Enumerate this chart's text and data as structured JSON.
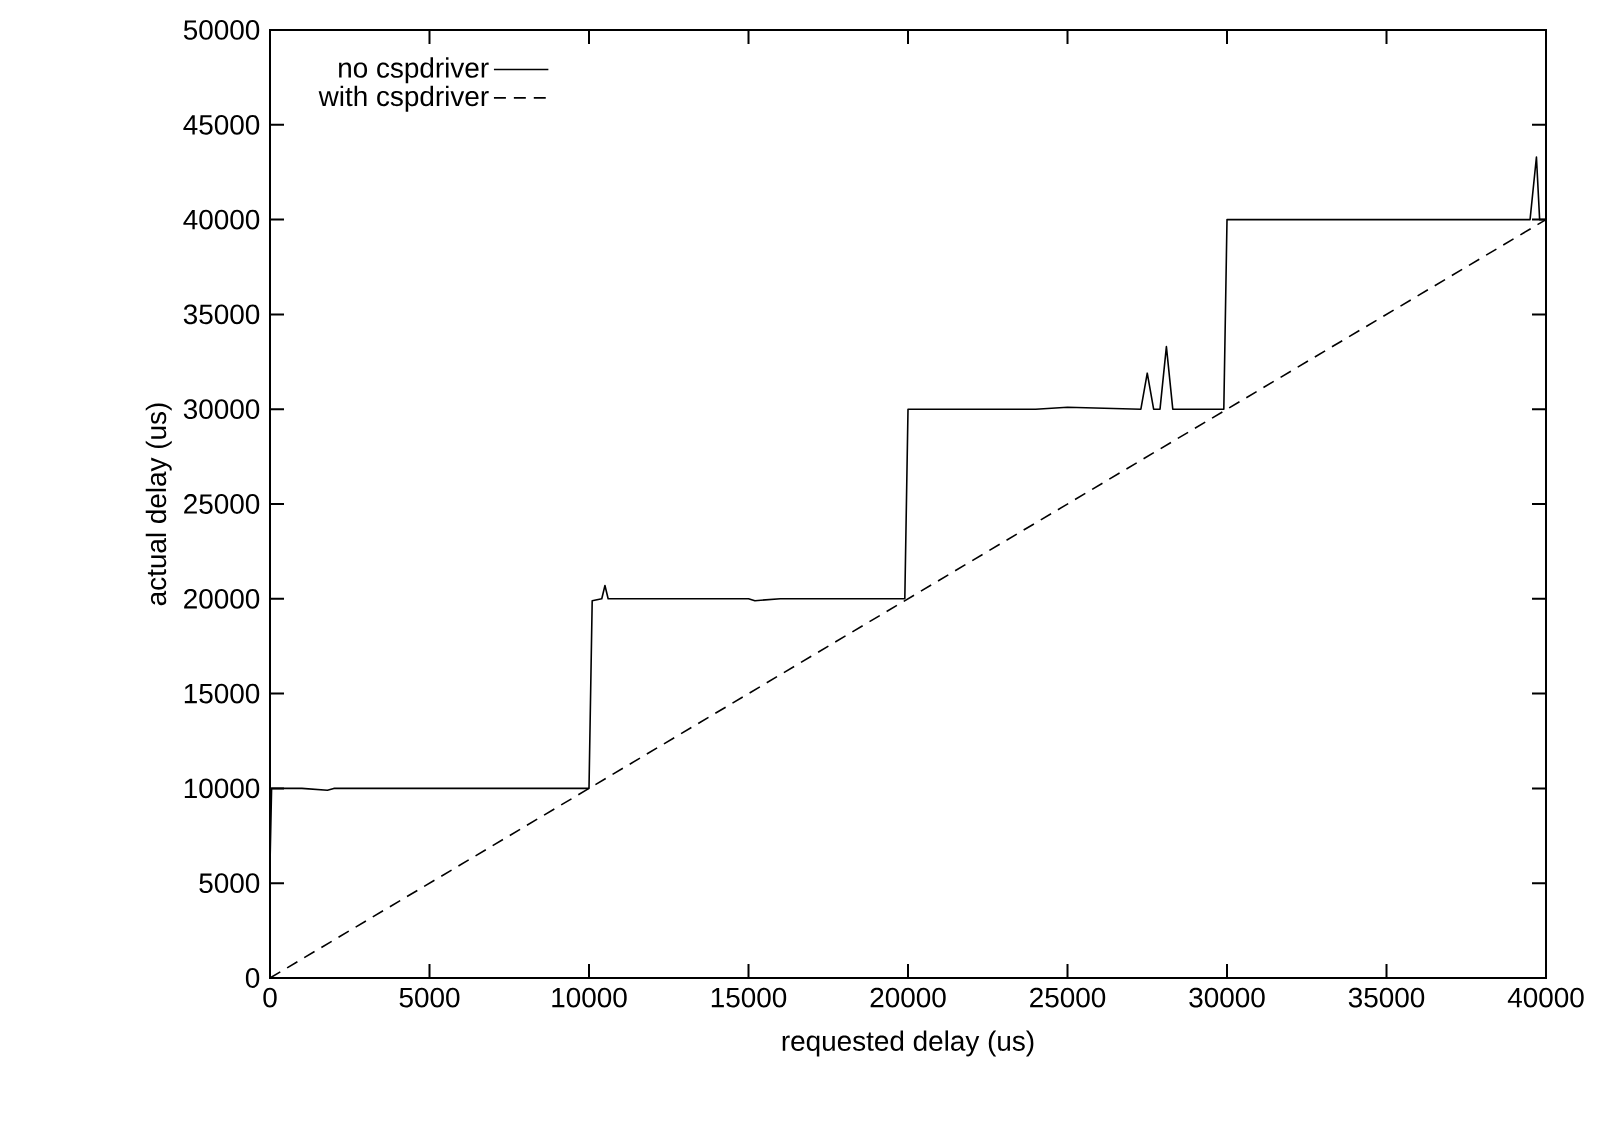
{
  "chart_data": {
    "type": "line",
    "xlabel": "requested delay (us)",
    "ylabel": "actual delay (us)",
    "xlim": [
      0,
      40000
    ],
    "ylim": [
      0,
      50000
    ],
    "xticks": [
      0,
      5000,
      10000,
      15000,
      20000,
      25000,
      30000,
      35000,
      40000
    ],
    "yticks": [
      0,
      5000,
      10000,
      15000,
      20000,
      25000,
      30000,
      35000,
      40000,
      45000,
      50000
    ],
    "grid": false,
    "legend": "top left",
    "marker": "none",
    "series": [
      {
        "name": "no cspdriver",
        "color": "#000000",
        "line_style": "solid",
        "x": [
          0,
          50,
          1000,
          1800,
          2000,
          4000,
          6000,
          8000,
          9000,
          9800,
          10000,
          10100,
          10400,
          10500,
          10600,
          12000,
          15000,
          15200,
          16000,
          18000,
          19900,
          20000,
          22000,
          24000,
          25000,
          27300,
          27500,
          27700,
          27900,
          28100,
          28300,
          29500,
          29900,
          30000,
          32000,
          34000,
          36000,
          38000,
          39500,
          39700,
          39800,
          40000
        ],
        "values": [
          6000,
          10000,
          10000,
          9900,
          10000,
          10000,
          10000,
          10000,
          10000,
          10000,
          10000,
          19900,
          20000,
          20700,
          20000,
          20000,
          20000,
          19900,
          20000,
          20000,
          20000,
          30000,
          30000,
          30000,
          30100,
          30000,
          31900,
          30000,
          30000,
          33300,
          30000,
          30000,
          30000,
          40000,
          40000,
          40000,
          40000,
          40000,
          40000,
          43300,
          40000,
          40000
        ]
      },
      {
        "name": "with cspdriver",
        "color": "#000000",
        "line_style": "dashed",
        "x": [
          0,
          40000
        ],
        "values": [
          0,
          40000
        ]
      }
    ]
  }
}
